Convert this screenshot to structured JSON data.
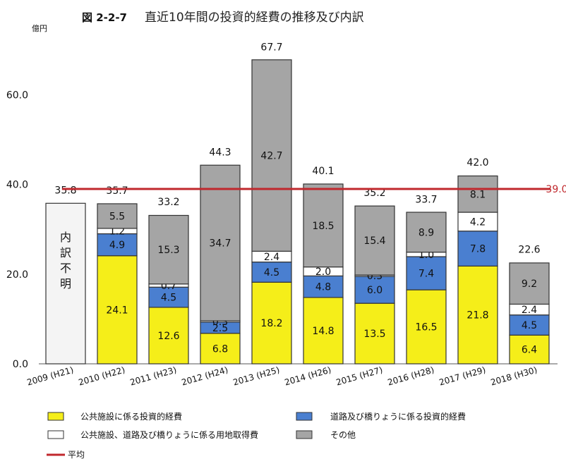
{
  "chart_data": {
    "type": "bar",
    "figure_number": "図 2-2-7",
    "title": "直近10年間の投資的経費の推移及び内訳",
    "ylabel": "億円",
    "ylim": [
      0,
      70
    ],
    "yticks": [
      0,
      20,
      40,
      60
    ],
    "ytick_labels": [
      "0.0",
      "20.0",
      "40.0",
      "60.0"
    ],
    "categories": [
      "2009 (H21)",
      "2010 (H22)",
      "2011 (H23)",
      "2012 (H24)",
      "2013 (H25)",
      "2014 (H26)",
      "2015 (H27)",
      "2016 (H28)",
      "2017 (H29)",
      "2018 (H30)"
    ],
    "series": [
      {
        "name": "公共施設に係る投資的経費",
        "color": "#f5ee19",
        "values": [
          null,
          24.1,
          12.6,
          6.8,
          18.2,
          14.8,
          13.5,
          16.5,
          21.8,
          6.4
        ],
        "labels": [
          null,
          "24.1",
          "12.6",
          "6.8",
          "18.2",
          "14.8",
          "13.5",
          "16.5",
          "21.8",
          "6.4"
        ]
      },
      {
        "name": "道路及び橋りょうに係る投資的経費",
        "color": "#4a7fd0",
        "values": [
          null,
          4.9,
          4.5,
          2.5,
          4.5,
          4.8,
          6.0,
          7.4,
          7.8,
          4.5
        ],
        "labels": [
          null,
          "4.9",
          "4.5",
          "2.5",
          "4.5",
          "4.8",
          "6.0",
          "7.4",
          "7.8",
          "4.5"
        ]
      },
      {
        "name": "公共施設、道路及び橋りょうに係る用地取得費",
        "color": "#ffffff",
        "values": [
          null,
          1.2,
          0.7,
          0.3,
          2.4,
          2.0,
          0.3,
          1.0,
          4.2,
          2.4
        ],
        "labels": [
          null,
          "1.2",
          "0.7",
          "0.3",
          "2.4",
          "2.0",
          "0.3",
          "1.0",
          "4.2",
          "2.4"
        ]
      },
      {
        "name": "その他",
        "color": "#a5a5a5",
        "values": [
          null,
          5.5,
          15.3,
          34.7,
          42.7,
          18.5,
          15.4,
          8.9,
          8.1,
          9.2
        ],
        "labels": [
          null,
          "5.5",
          "15.3",
          "34.7",
          "42.7",
          "18.5",
          "15.4",
          "8.9",
          "8.1",
          "9.2"
        ]
      }
    ],
    "totals": [
      35.8,
      35.7,
      33.2,
      44.3,
      67.7,
      40.1,
      35.2,
      33.7,
      42.0,
      22.6
    ],
    "total_labels": [
      "35.8",
      "35.7",
      "33.2",
      "44.3",
      "67.7",
      "40.1",
      "35.2",
      "33.7",
      "42.0",
      "22.6"
    ],
    "undisclosed_label": "内訳不明",
    "average": {
      "name": "平均",
      "value": 39.0,
      "label": "39.0",
      "color": "#c0282d"
    },
    "legend": [
      "公共施設に係る投資的経費",
      "道路及び橋りょうに係る投資的経費",
      "公共施設、道路及び橋りょうに係る用地取得費",
      "その他",
      "平均"
    ],
    "legend_position": "bottom",
    "grid": false
  }
}
